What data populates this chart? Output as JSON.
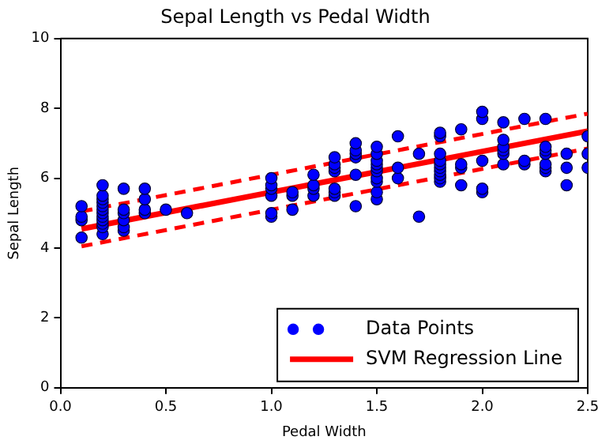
{
  "chart_data": {
    "type": "scatter",
    "title": "Sepal Length vs Pedal Width",
    "xlabel": "Pedal Width",
    "ylabel": "Sepal Length",
    "xlim": [
      0,
      2.5
    ],
    "xticks": [
      {
        "value": 0,
        "label": "0.0"
      },
      {
        "value": 0.5,
        "label": "0.5"
      },
      {
        "value": 1,
        "label": "1.0"
      },
      {
        "value": 1.5,
        "label": "1.5"
      },
      {
        "value": 2,
        "label": "2.0"
      },
      {
        "value": 2.5,
        "label": "2.5"
      }
    ],
    "ylim": [
      0,
      10
    ],
    "yticks": [
      0,
      2,
      4,
      6,
      8,
      10
    ],
    "grid": false,
    "legend": "bottom right",
    "series": [
      {
        "name": "Data Points",
        "marker": "circle",
        "color": "#0000ff",
        "x": [
          0.1,
          0.1,
          0.1,
          0.1,
          0.2,
          0.2,
          0.2,
          0.2,
          0.2,
          0.2,
          0.2,
          0.2,
          0.2,
          0.2,
          0.2,
          0.2,
          0.3,
          0.3,
          0.3,
          0.3,
          0.3,
          0.3,
          0.4,
          0.4,
          0.4,
          0.4,
          0.5,
          0.6,
          1.0,
          1.0,
          1.0,
          1.0,
          1.0,
          1.0,
          1.1,
          1.1,
          1.1,
          1.2,
          1.2,
          1.2,
          1.2,
          1.3,
          1.3,
          1.3,
          1.3,
          1.3,
          1.3,
          1.3,
          1.4,
          1.4,
          1.4,
          1.4,
          1.4,
          1.4,
          1.5,
          1.5,
          1.5,
          1.5,
          1.5,
          1.5,
          1.5,
          1.5,
          1.5,
          1.5,
          1.6,
          1.6,
          1.6,
          1.7,
          1.7,
          1.8,
          1.8,
          1.8,
          1.8,
          1.8,
          1.8,
          1.8,
          1.8,
          1.8,
          1.8,
          1.9,
          1.9,
          1.9,
          1.9,
          2.0,
          2.0,
          2.0,
          2.0,
          2.0,
          2.1,
          2.1,
          2.1,
          2.1,
          2.1,
          2.1,
          2.2,
          2.2,
          2.2,
          2.3,
          2.3,
          2.3,
          2.3,
          2.3,
          2.3,
          2.3,
          2.4,
          2.4,
          2.4,
          2.5,
          2.5,
          2.5
        ],
        "values": [
          4.3,
          4.8,
          4.9,
          5.2,
          4.4,
          4.6,
          4.7,
          4.8,
          4.9,
          5.0,
          5.1,
          5.2,
          5.3,
          5.4,
          5.5,
          5.8,
          4.5,
          4.6,
          4.8,
          5.0,
          5.1,
          5.7,
          5.0,
          5.1,
          5.4,
          5.7,
          5.1,
          5.0,
          4.9,
          5.0,
          5.5,
          5.7,
          5.8,
          6.0,
          5.1,
          5.5,
          5.6,
          5.5,
          5.7,
          5.8,
          6.1,
          5.5,
          5.6,
          5.7,
          6.2,
          6.3,
          6.4,
          6.6,
          5.2,
          6.1,
          6.6,
          6.7,
          6.8,
          7.0,
          5.4,
          5.6,
          5.9,
          6.0,
          6.2,
          6.3,
          6.4,
          6.5,
          6.7,
          6.9,
          6.0,
          6.3,
          7.2,
          4.9,
          6.7,
          5.9,
          6.0,
          6.1,
          6.2,
          6.3,
          6.4,
          6.5,
          6.7,
          7.2,
          7.3,
          5.8,
          6.3,
          6.4,
          7.4,
          5.6,
          5.7,
          6.5,
          7.7,
          7.9,
          6.4,
          6.7,
          6.8,
          6.9,
          7.1,
          7.6,
          6.4,
          6.5,
          7.7,
          6.2,
          6.3,
          6.4,
          6.7,
          6.8,
          6.9,
          7.7,
          5.8,
          6.3,
          6.7,
          6.3,
          6.7,
          7.2
        ]
      },
      {
        "name": "SVM Regression Line",
        "type": "line",
        "marker": "none",
        "line_style": "solid",
        "color": "#ff0000",
        "x": [
          0.1,
          2.5
        ],
        "values": [
          4.55,
          7.35
        ]
      },
      {
        "type": "line",
        "marker": "none",
        "line_style": "dashed",
        "color": "#ff0000",
        "x": [
          0.1,
          2.5
        ],
        "values": [
          5.05,
          7.85
        ]
      },
      {
        "type": "line",
        "marker": "none",
        "line_style": "dashed",
        "color": "#ff0000",
        "x": [
          0.1,
          2.5
        ],
        "values": [
          4.05,
          6.85
        ]
      }
    ]
  }
}
